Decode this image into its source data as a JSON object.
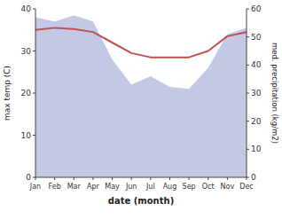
{
  "chart_data": {
    "type": "line",
    "xlabel": "date (month)",
    "ylabel": "max temp (C)",
    "y2label": "med. precipitation (kg/m2)",
    "categories": [
      "Jan",
      "Feb",
      "Mar",
      "Apr",
      "May",
      "Jun",
      "Jul",
      "Aug",
      "Sep",
      "Oct",
      "Nov",
      "Dec"
    ],
    "series": [
      {
        "type": "area",
        "color": "#b8c0e0",
        "values": [
          38,
          37,
          38.5,
          37,
          28,
          22,
          24,
          21.5,
          21,
          26,
          34,
          35.5
        ]
      },
      {
        "type": "line",
        "color": "#c0504d",
        "values": [
          35,
          35.5,
          35.2,
          34.5,
          32,
          29.5,
          28.5,
          28.5,
          28.5,
          30,
          33.5,
          34.5
        ]
      }
    ],
    "ylim": [
      0,
      40
    ],
    "yticks": [
      0,
      10,
      20,
      30,
      40
    ],
    "y2lim": [
      0,
      60
    ],
    "y2ticks": [
      0,
      10,
      20,
      30,
      40,
      50,
      60
    ],
    "grid": false
  }
}
